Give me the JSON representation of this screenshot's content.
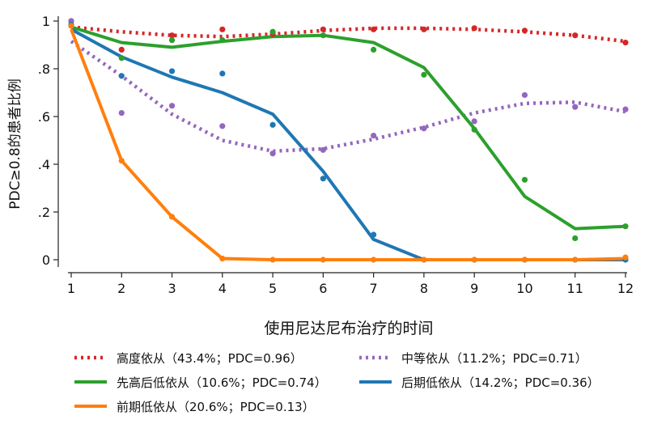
{
  "chart_data": {
    "type": "line",
    "title": "",
    "xlabel": "使用尼达尼布治疗的时间",
    "ylabel": "PDC≥0.8的患者比例",
    "x": [
      1,
      2,
      3,
      4,
      5,
      6,
      7,
      8,
      9,
      10,
      11,
      12
    ],
    "xlim": [
      1,
      12
    ],
    "ylim": [
      0,
      1
    ],
    "y_ticks": [
      {
        "value": 0,
        "label": "0"
      },
      {
        "value": 0.2,
        "label": ".2"
      },
      {
        "value": 0.4,
        "label": ".4"
      },
      {
        "value": 0.6,
        "label": ".6"
      },
      {
        "value": 0.8,
        "label": ".8"
      },
      {
        "value": 1.0,
        "label": "1"
      }
    ],
    "x_ticks": [
      "1",
      "2",
      "3",
      "4",
      "5",
      "6",
      "7",
      "8",
      "9",
      "10",
      "11",
      "12"
    ],
    "grid": false,
    "legend_position": "bottom",
    "series": [
      {
        "name": "高度依从（43.4%；PDC=0.96）",
        "color": "#d62728",
        "style": "dotted",
        "fitted": [
          0.975,
          0.955,
          0.94,
          0.935,
          0.945,
          0.96,
          0.97,
          0.97,
          0.965,
          0.955,
          0.94,
          0.915
        ],
        "observed": [
          1.0,
          0.88,
          0.94,
          0.965,
          0.945,
          0.965,
          0.965,
          0.965,
          0.97,
          0.96,
          0.94,
          0.91
        ]
      },
      {
        "name": "中等依从（11.2%；PDC=0.71）",
        "color": "#9467bd",
        "style": "dotted",
        "fitted": [
          0.915,
          0.77,
          0.61,
          0.5,
          0.455,
          0.465,
          0.505,
          0.555,
          0.615,
          0.655,
          0.66,
          0.62
        ],
        "observed": [
          1.0,
          0.615,
          0.645,
          0.56,
          0.445,
          0.46,
          0.52,
          0.55,
          0.58,
          0.69,
          0.64,
          0.63
        ]
      },
      {
        "name": "先高后低依从（10.6%；PDC=0.74）",
        "color": "#2ca02c",
        "style": "solid",
        "fitted": [
          0.975,
          0.91,
          0.89,
          0.915,
          0.935,
          0.94,
          0.91,
          0.805,
          0.55,
          0.265,
          0.13,
          0.14
        ],
        "observed": [
          0.98,
          0.845,
          0.92,
          0.92,
          0.955,
          0.94,
          0.88,
          0.775,
          0.545,
          0.335,
          0.09,
          0.14
        ]
      },
      {
        "name": "后期低依从（14.2%；PDC=0.36）",
        "color": "#1f77b4",
        "style": "solid",
        "fitted": [
          0.965,
          0.85,
          0.765,
          0.7,
          0.61,
          0.37,
          0.085,
          0.0,
          0.0,
          0.0,
          0.0,
          0.0
        ],
        "observed": [
          0.985,
          0.77,
          0.79,
          0.78,
          0.565,
          0.34,
          0.105,
          0.0,
          0.0,
          0.0,
          0.0,
          0.0
        ]
      },
      {
        "name": "前期低依从（20.6%；PDC=0.13）",
        "color": "#ff7f0e",
        "style": "solid",
        "fitted": [
          0.965,
          0.415,
          0.18,
          0.005,
          0.0,
          0.0,
          0.0,
          0.0,
          0.0,
          0.0,
          0.0,
          0.005
        ],
        "observed": [
          0.98,
          0.415,
          0.18,
          0.005,
          0.0,
          0.0,
          0.0,
          0.0,
          0.0,
          0.0,
          0.0,
          0.01
        ]
      }
    ],
    "legend_layout": [
      [
        0,
        1
      ],
      [
        2,
        3
      ],
      [
        4
      ]
    ]
  }
}
